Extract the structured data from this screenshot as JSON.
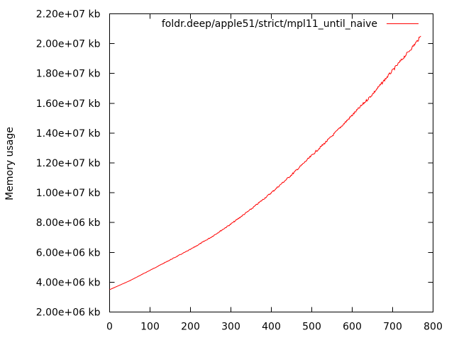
{
  "chart_data": {
    "type": "line",
    "ylabel": "Memory usage",
    "xlabel": "",
    "xlim": [
      0,
      800
    ],
    "ylim": [
      2000000,
      22000000
    ],
    "x_ticks": [
      0,
      100,
      200,
      300,
      400,
      500,
      600,
      700,
      800
    ],
    "x_tick_labels": [
      "0",
      "100",
      "200",
      "300",
      "400",
      "500",
      "600",
      "700",
      "800"
    ],
    "y_ticks": [
      2000000,
      4000000,
      6000000,
      8000000,
      10000000,
      12000000,
      14000000,
      16000000,
      18000000,
      20000000,
      22000000
    ],
    "y_tick_labels": [
      "2.00e+06 kb",
      "4.00e+06 kb",
      "6.00e+06 kb",
      "8.00e+06 kb",
      "1.00e+07 kb",
      "1.20e+07 kb",
      "1.40e+07 kb",
      "1.60e+07 kb",
      "1.80e+07 kb",
      "2.00e+07 kb",
      "2.20e+07 kb"
    ],
    "legend_position": "top-right",
    "grid": false,
    "series": [
      {
        "name": "foldr.deep/apple51/strict/mpl11_until_naive",
        "color": "#ff0000",
        "x": [
          0,
          50,
          100,
          150,
          200,
          250,
          300,
          350,
          400,
          450,
          500,
          550,
          600,
          650,
          700,
          750,
          770
        ],
        "values": [
          3500000,
          4100000,
          4800000,
          5500000,
          6200000,
          7000000,
          7900000,
          8900000,
          10000000,
          11200000,
          12500000,
          13800000,
          15200000,
          16600000,
          18200000,
          19800000,
          20500000
        ]
      }
    ]
  }
}
